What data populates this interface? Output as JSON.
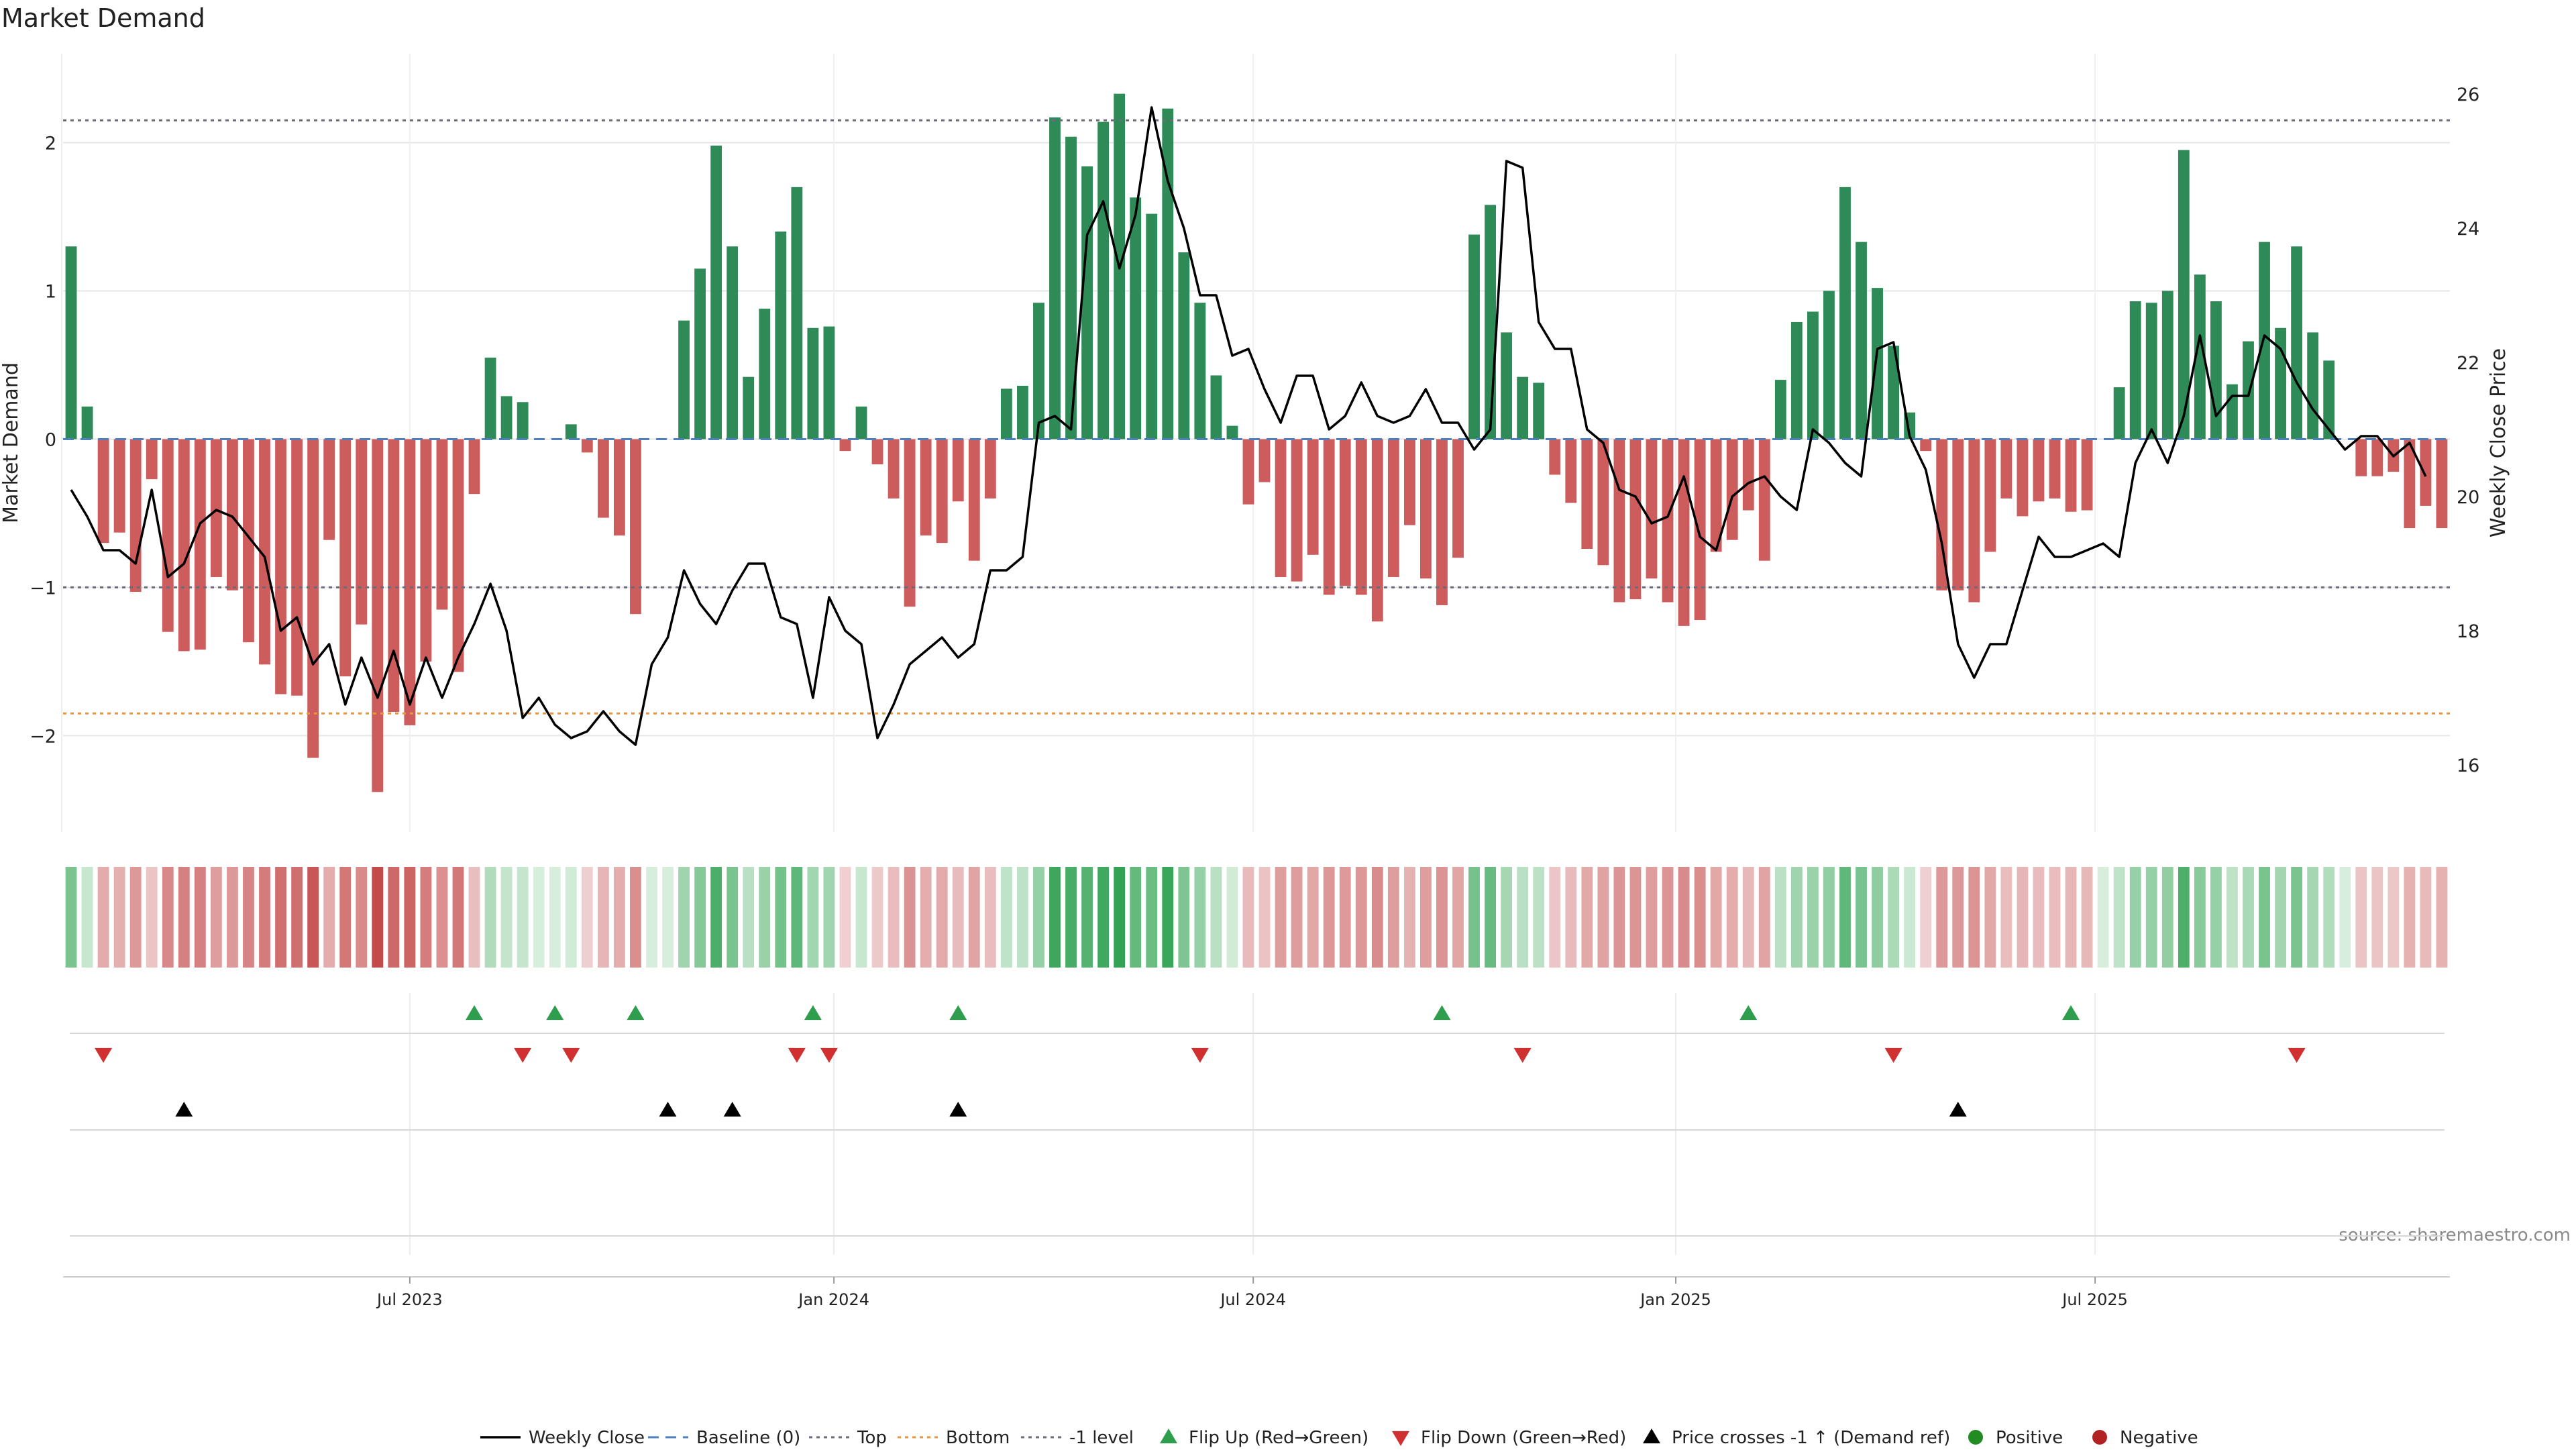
{
  "colors": {
    "positive_bar": "#2e8b57",
    "negative_bar": "#cd5c5c",
    "price_line": "#000000",
    "baseline": "#4f7fbf",
    "top_line": "#6b6b7b",
    "bottom_line": "#e8963c",
    "minus1_line": "#6b6b7b",
    "flip_up": "#2e9e4e",
    "flip_down": "#d03030",
    "cross_marker": "#000000",
    "positive_dot": "#228b22",
    "negative_dot": "#b22222",
    "grid": "#e6e6e6",
    "text": "#222222",
    "source": "#8a8a8a"
  },
  "chart_data": {
    "type": "bar",
    "title": "Market Demand",
    "ylabel": "Market Demand",
    "y2label": "Weekly Close Price",
    "ylim": [
      -2.65,
      2.6
    ],
    "y2lim": [
      15.0,
      26.6
    ],
    "yticks": [
      {
        "v": 2,
        "label": "2"
      },
      {
        "v": 1,
        "label": "1"
      },
      {
        "v": 0,
        "label": "0"
      },
      {
        "v": -1,
        "label": "−1"
      },
      {
        "v": -2,
        "label": "−2"
      }
    ],
    "y2ticks": [
      {
        "v": 26,
        "label": "26"
      },
      {
        "v": 24,
        "label": "24"
      },
      {
        "v": 22,
        "label": "22"
      },
      {
        "v": 20,
        "label": "20"
      },
      {
        "v": 18,
        "label": "18"
      },
      {
        "v": 16,
        "label": "16"
      }
    ],
    "xticks": [
      {
        "i": 21,
        "label": "Jul 2023"
      },
      {
        "i": 47.3,
        "label": "Jan 2024"
      },
      {
        "i": 73.3,
        "label": "Jul 2024"
      },
      {
        "i": 99.5,
        "label": "Jan 2025"
      },
      {
        "i": 125.5,
        "label": "Jul 2025"
      }
    ],
    "top_level": 2.15,
    "bottom_level": -1.85,
    "minus1_level": -1.0,
    "demand": [
      1.3,
      0.22,
      -0.7,
      -0.63,
      -1.03,
      -0.27,
      -1.3,
      -1.43,
      -1.42,
      -0.93,
      -1.02,
      -1.37,
      -1.52,
      -1.72,
      -1.73,
      -2.15,
      -0.68,
      -1.6,
      -1.25,
      -2.38,
      -1.84,
      -1.93,
      -1.5,
      -1.15,
      -1.57,
      -0.37,
      0.55,
      0.29,
      0.25,
      0.0,
      0.0,
      0.1,
      -0.09,
      -0.53,
      -0.65,
      -1.18,
      0.0,
      0.0,
      0.8,
      1.15,
      1.98,
      1.3,
      0.42,
      0.88,
      1.4,
      1.7,
      0.75,
      0.76,
      -0.08,
      0.22,
      -0.17,
      -0.4,
      -1.13,
      -0.65,
      -0.7,
      -0.42,
      -0.82,
      -0.4,
      0.34,
      0.36,
      0.92,
      2.17,
      2.04,
      1.84,
      2.14,
      2.33,
      1.63,
      1.52,
      2.23,
      1.26,
      0.92,
      0.43,
      0.09,
      -0.44,
      -0.29,
      -0.93,
      -0.96,
      -0.78,
      -1.05,
      -0.99,
      -1.05,
      -1.23,
      -0.93,
      -0.58,
      -0.94,
      -1.12,
      -0.8,
      1.38,
      1.58,
      0.72,
      0.42,
      0.38,
      -0.24,
      -0.43,
      -0.74,
      -0.85,
      -1.1,
      -1.08,
      -0.94,
      -1.1,
      -1.26,
      -1.22,
      -0.76,
      -0.68,
      -0.48,
      -0.82,
      0.4,
      0.79,
      0.86,
      1.0,
      1.7,
      1.33,
      1.02,
      0.63,
      0.18,
      -0.08,
      -1.02,
      -1.02,
      -1.1,
      -0.76,
      -0.4,
      -0.52,
      -0.42,
      -0.4,
      -0.49,
      -0.48,
      0.0,
      0.35,
      0.93,
      0.92,
      1.0,
      1.95,
      1.11,
      0.93,
      0.37,
      0.66,
      1.33,
      0.75,
      1.3,
      0.72,
      0.53,
      0.0,
      -0.25,
      -0.25,
      -0.22,
      -0.6,
      -0.45,
      -0.6
    ],
    "price": [
      20.1,
      19.7,
      19.2,
      19.2,
      19.0,
      20.1,
      18.8,
      19.0,
      19.6,
      19.8,
      19.7,
      19.4,
      19.1,
      18.0,
      18.2,
      17.5,
      17.8,
      16.9,
      17.6,
      17.0,
      17.7,
      16.9,
      17.6,
      17.0,
      17.6,
      18.1,
      18.7,
      18.0,
      16.7,
      17.0,
      16.6,
      16.4,
      16.5,
      16.8,
      16.5,
      16.3,
      17.5,
      17.9,
      18.9,
      18.4,
      18.1,
      18.6,
      19.0,
      19.0,
      18.2,
      18.1,
      17.0,
      18.5,
      18.0,
      17.8,
      16.4,
      16.9,
      17.5,
      17.7,
      17.9,
      17.6,
      17.8,
      18.9,
      18.9,
      19.1,
      21.1,
      21.2,
      21.0,
      23.9,
      24.4,
      23.4,
      24.2,
      25.8,
      24.7,
      24.0,
      23.0,
      23.0,
      22.1,
      22.2,
      21.6,
      21.1,
      21.8,
      21.8,
      21.0,
      21.2,
      21.7,
      21.2,
      21.1,
      21.2,
      21.6,
      21.1,
      21.1,
      20.7,
      21.0,
      25.0,
      24.9,
      22.6,
      22.2,
      22.2,
      21.0,
      20.8,
      20.1,
      20.0,
      19.6,
      19.7,
      20.3,
      19.4,
      19.2,
      20.0,
      20.2,
      20.3,
      20.0,
      19.8,
      21.0,
      20.8,
      20.5,
      20.3,
      22.2,
      22.3,
      20.9,
      20.4,
      19.3,
      17.8,
      17.3,
      17.8,
      17.8,
      18.6,
      19.4,
      19.1,
      19.1,
      19.2,
      19.3,
      19.1,
      20.5,
      21.0,
      20.5,
      21.2,
      22.4,
      21.2,
      21.5,
      21.5,
      22.4,
      22.2,
      21.7,
      21.3,
      21.0,
      20.7,
      20.9,
      20.9,
      20.6,
      20.8,
      20.3
    ],
    "heat_values": [
      1.3,
      0.22,
      -0.7,
      -0.63,
      -1.03,
      -0.27,
      -1.3,
      -1.43,
      -1.42,
      -0.93,
      -1.02,
      -1.37,
      -1.52,
      -1.72,
      -1.73,
      -2.15,
      -0.68,
      -1.6,
      -1.25,
      -2.38,
      -1.84,
      -1.93,
      -1.5,
      -1.15,
      -1.57,
      -0.37,
      0.55,
      0.29,
      0.25,
      0.0,
      0.0,
      0.1,
      -0.09,
      -0.53,
      -0.65,
      -1.18,
      0.0,
      0.0,
      0.8,
      1.15,
      1.98,
      1.3,
      0.42,
      0.88,
      1.4,
      1.7,
      0.75,
      0.76,
      -0.08,
      0.22,
      -0.17,
      -0.4,
      -1.13,
      -0.65,
      -0.7,
      -0.42,
      -0.82,
      -0.4,
      0.34,
      0.36,
      0.92,
      2.17,
      2.04,
      1.84,
      2.14,
      2.33,
      1.63,
      1.52,
      2.23,
      1.26,
      0.92,
      0.43,
      0.09,
      -0.44,
      -0.29,
      -0.93,
      -0.96,
      -0.78,
      -1.05,
      -0.99,
      -1.05,
      -1.23,
      -0.93,
      -0.58,
      -0.94,
      -1.12,
      -0.8,
      1.38,
      1.58,
      0.72,
      0.42,
      0.38,
      -0.24,
      -0.43,
      -0.74,
      -0.85,
      -1.1,
      -1.08,
      -0.94,
      -1.1,
      -1.26,
      -1.22,
      -0.76,
      -0.68,
      -0.48,
      -0.82,
      0.4,
      0.79,
      0.86,
      1.0,
      1.7,
      1.33,
      1.02,
      0.63,
      0.18,
      -0.08,
      -1.02,
      -1.02,
      -1.1,
      -0.76,
      -0.4,
      -0.52,
      -0.42,
      -0.4,
      -0.49,
      -0.48,
      0.0,
      0.35,
      0.93,
      0.92,
      1.0,
      1.95,
      1.11,
      0.93,
      0.37,
      0.66,
      1.33,
      0.75,
      1.3,
      0.72,
      0.53,
      0.0,
      -0.25,
      -0.25,
      -0.22,
      -0.6,
      -0.45,
      -0.6
    ],
    "flip_up_weeks": [
      25,
      30,
      35,
      46,
      55,
      85,
      104,
      124
    ],
    "flip_down_weeks": [
      2,
      28,
      31,
      45,
      47,
      70,
      90,
      113,
      138
    ],
    "price_cross_weeks": [
      7,
      37,
      41,
      55,
      117
    ],
    "legend": [
      {
        "key": "weekly_close",
        "label": "Weekly Close",
        "style": "line"
      },
      {
        "key": "baseline",
        "label": "Baseline (0)",
        "style": "dashed"
      },
      {
        "key": "top",
        "label": "Top",
        "style": "dotted"
      },
      {
        "key": "bottom",
        "label": "Bottom",
        "style": "dotted"
      },
      {
        "key": "minus1",
        "label": "-1 level",
        "style": "dotted"
      },
      {
        "key": "flip_up",
        "label": "Flip Up (Red→Green)",
        "style": "tri-up"
      },
      {
        "key": "flip_down",
        "label": "Flip Down (Green→Red)",
        "style": "tri-down"
      },
      {
        "key": "cross",
        "label": "Price crosses -1 ↑ (Demand ref)",
        "style": "tri-up-black"
      },
      {
        "key": "positive",
        "label": "Positive",
        "style": "dot"
      },
      {
        "key": "negative",
        "label": "Negative",
        "style": "dot"
      }
    ],
    "source": "source: sharemaestro.com"
  }
}
